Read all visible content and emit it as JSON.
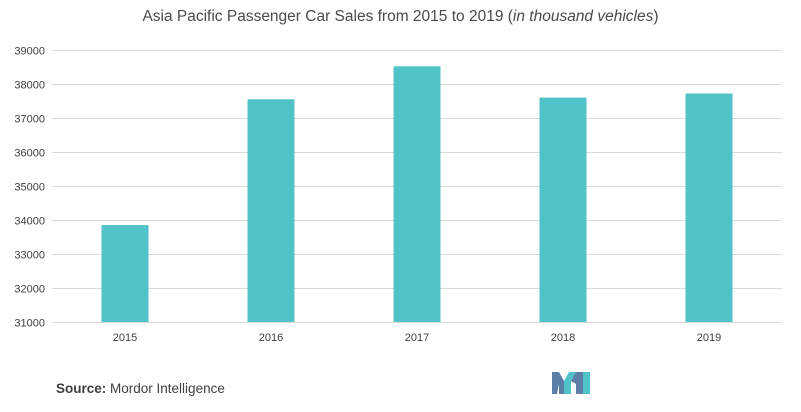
{
  "title": {
    "main": "Asia Pacific Passenger Car Sales from 2015 to 2019 (",
    "italic": "in thousand vehicles",
    "close": ")"
  },
  "source": {
    "label": "Source:",
    "name": "Mordor Intelligence"
  },
  "logo": {
    "icon": "mordor-intelligence-logo-icon",
    "colors": [
      "#5b7fa6",
      "#4fc3c7"
    ]
  },
  "colors": {
    "bar": "#4fc3c7",
    "grid": "#d9d9d9",
    "tick_text": "#404040"
  },
  "chart_data": {
    "type": "bar",
    "title": "Asia Pacific Passenger Car Sales from 2015 to 2019 (in thousand vehicles)",
    "categories": [
      "2015",
      "2016",
      "2017",
      "2018",
      "2019"
    ],
    "values": [
      33850,
      37550,
      38520,
      37600,
      37720
    ],
    "ylim": [
      31000,
      39000
    ],
    "yticks": [
      31000,
      32000,
      33000,
      34000,
      35000,
      36000,
      37000,
      38000,
      39000
    ],
    "xlabel": "",
    "ylabel": "",
    "grid": true,
    "legend": "none"
  }
}
